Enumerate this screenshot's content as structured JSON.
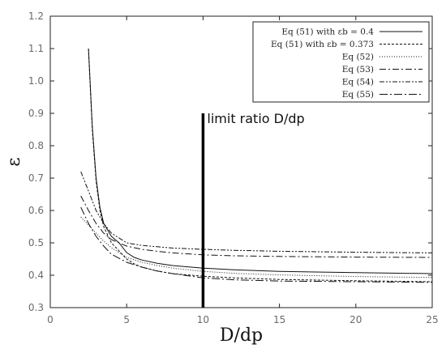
{
  "chart_data": {
    "type": "line",
    "title": "",
    "xlabel": "D/dp",
    "ylabel": "ε",
    "xlim": [
      0,
      25
    ],
    "ylim": [
      0.3,
      1.2
    ],
    "xticks": [
      "0",
      "5",
      "10",
      "15",
      "20",
      "25"
    ],
    "yticks": [
      "0.3",
      "0.4",
      "0.5",
      "0.6",
      "0.7",
      "0.8",
      "0.9",
      "1.0",
      "1.1",
      "1.2"
    ],
    "grid": false,
    "legend_position": "top-right",
    "series": [
      {
        "name": "Eq (51) with εb = 0.4",
        "dash": "",
        "x": [
          2.5,
          2.75,
          3,
          3.25,
          3.5,
          3.75,
          4,
          4.5,
          5,
          5.5,
          6,
          7,
          8,
          10,
          12,
          15,
          20,
          25
        ],
        "y": [
          1.1,
          0.86,
          0.7,
          0.61,
          0.56,
          0.54,
          0.52,
          0.5,
          0.47,
          0.455,
          0.447,
          0.437,
          0.43,
          0.422,
          0.417,
          0.412,
          0.408,
          0.405
        ]
      },
      {
        "name": "Eq (51) with  εb = 0.373",
        "dash": "3,2",
        "x": [
          2.5,
          2.75,
          3,
          3.25,
          3.5,
          3.75,
          4,
          4.5,
          5,
          5.5,
          6,
          7,
          8,
          10,
          12,
          15,
          20,
          25
        ],
        "y": [
          1.1,
          0.85,
          0.69,
          0.6,
          0.55,
          0.525,
          0.5,
          0.475,
          0.45,
          0.435,
          0.425,
          0.413,
          0.405,
          0.397,
          0.392,
          0.387,
          0.383,
          0.38
        ]
      },
      {
        "name": "Eq (52)",
        "dash": "1,2",
        "x": [
          2,
          2.5,
          3,
          3.5,
          4,
          5,
          6,
          7,
          8,
          10,
          12,
          15,
          20,
          25
        ],
        "y": [
          0.58,
          0.555,
          0.53,
          0.505,
          0.485,
          0.455,
          0.44,
          0.43,
          0.422,
          0.412,
          0.406,
          0.401,
          0.396,
          0.393
        ]
      },
      {
        "name": "Eq (53)",
        "dash": "8,3,2,3",
        "x": [
          2,
          2.5,
          3,
          3.5,
          4,
          5,
          6,
          7,
          8,
          10,
          12,
          15,
          20,
          25
        ],
        "y": [
          0.645,
          0.6,
          0.56,
          0.53,
          0.51,
          0.49,
          0.48,
          0.474,
          0.469,
          0.463,
          0.46,
          0.458,
          0.456,
          0.455
        ]
      },
      {
        "name": "Eq (54)",
        "dash": "6,2,2,2,2,2",
        "x": [
          2,
          2.5,
          3,
          3.5,
          4,
          5,
          6,
          7,
          8,
          10,
          12,
          15,
          20,
          25
        ],
        "y": [
          0.72,
          0.66,
          0.6,
          0.56,
          0.53,
          0.5,
          0.492,
          0.488,
          0.484,
          0.48,
          0.477,
          0.474,
          0.471,
          0.469
        ]
      },
      {
        "name": "Eq (55)",
        "dash": "10,3,2,3",
        "x": [
          2,
          2.5,
          3,
          3.5,
          4,
          5,
          6,
          7,
          8,
          10,
          12,
          15,
          20,
          25
        ],
        "y": [
          0.61,
          0.56,
          0.52,
          0.49,
          0.465,
          0.44,
          0.425,
          0.413,
          0.405,
          0.392,
          0.386,
          0.382,
          0.38,
          0.378
        ]
      }
    ],
    "annotations": [
      {
        "type": "vline",
        "x": 10,
        "y_from": 0.3,
        "y_to": 0.9,
        "label": "limit ratio D/dp"
      }
    ]
  }
}
